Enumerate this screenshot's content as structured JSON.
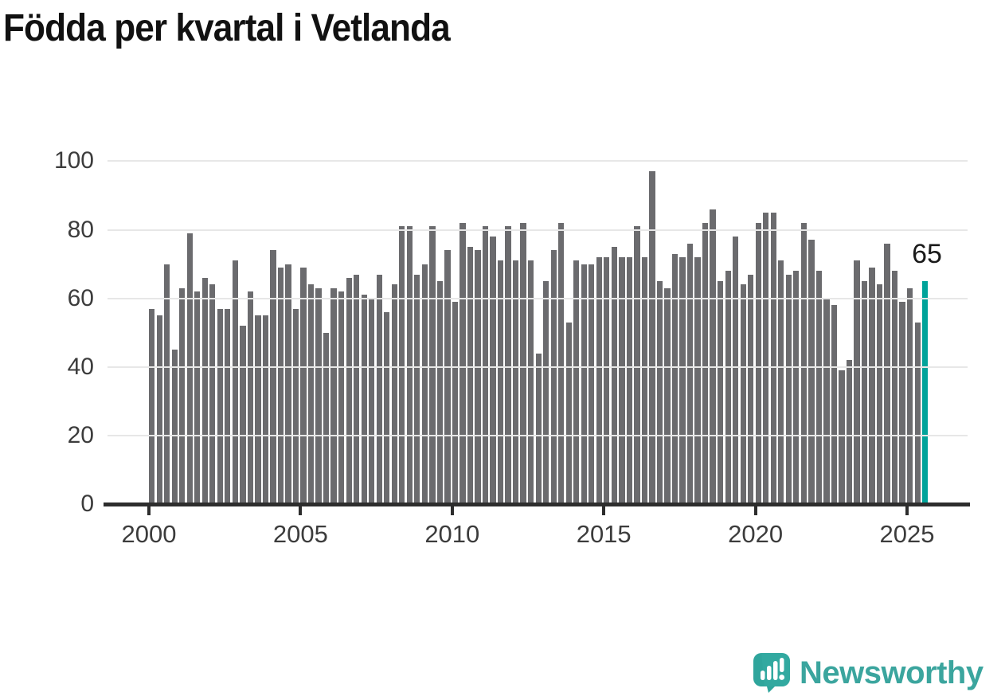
{
  "title": "Födda per kvartal i Vetlanda",
  "annotation": {
    "label": "65"
  },
  "logo": {
    "text": "Newsworthy"
  },
  "colors": {
    "bar": "#6b6b6e",
    "accent": "#00a39a",
    "title": "#111111",
    "axis": "#2d2d2d",
    "tick_label": "#3c3c3c",
    "gridline": "#e7e7e7",
    "logo_teal": "#3ba59e",
    "annotation_text": "#1a1a1a"
  },
  "chart_data": {
    "type": "bar",
    "title": "Födda per kvartal i Vetlanda",
    "xlabel": "",
    "ylabel": "",
    "x_start": "2000-Q1",
    "x_end": "2025-Q3",
    "x_unit": "quarter",
    "ylim": [
      0,
      100
    ],
    "yticks": [
      0,
      20,
      40,
      60,
      80,
      100
    ],
    "xticks": [
      2000,
      2005,
      2010,
      2015,
      2020,
      2025
    ],
    "grid": "horizontal",
    "legend": "none",
    "highlight_last_bar": true,
    "last_bar_label": "65",
    "values": [
      57,
      55,
      70,
      45,
      63,
      79,
      62,
      66,
      64,
      57,
      57,
      71,
      52,
      62,
      55,
      55,
      74,
      69,
      70,
      57,
      69,
      64,
      63,
      50,
      63,
      62,
      66,
      67,
      61,
      60,
      67,
      56,
      64,
      81,
      81,
      67,
      70,
      81,
      65,
      74,
      59,
      82,
      75,
      74,
      81,
      78,
      71,
      81,
      71,
      82,
      71,
      44,
      65,
      74,
      82,
      53,
      71,
      70,
      70,
      72,
      72,
      75,
      72,
      72,
      81,
      72,
      97,
      65,
      63,
      73,
      72,
      76,
      72,
      82,
      86,
      65,
      68,
      78,
      64,
      67,
      82,
      85,
      85,
      71,
      67,
      68,
      82,
      77,
      68,
      60,
      58,
      39,
      42,
      71,
      65,
      69,
      64,
      76,
      68,
      59,
      63,
      53,
      65
    ]
  }
}
